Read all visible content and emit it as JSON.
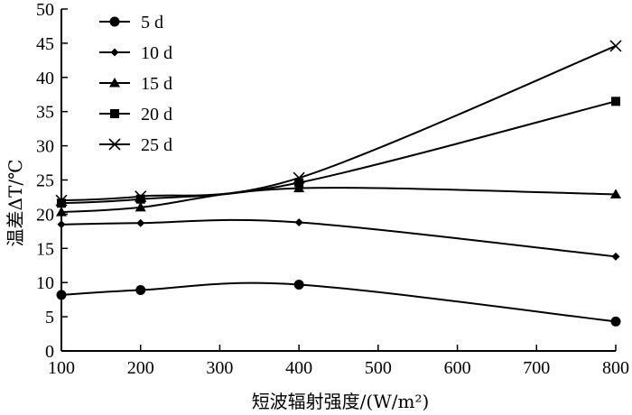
{
  "chart_data": {
    "type": "line",
    "xlabel": "短波辐射强度/(W/m²)",
    "ylabel": "温差ΔT/℃",
    "x": [
      100,
      200,
      400,
      800
    ],
    "xlim": [
      100,
      800
    ],
    "ylim": [
      0,
      50
    ],
    "xticks": [
      "100",
      "200",
      "300",
      "400",
      "500",
      "600",
      "700",
      "800"
    ],
    "yticks": [
      "0",
      "5",
      "10",
      "15",
      "20",
      "25",
      "30",
      "35",
      "40",
      "45",
      "50"
    ],
    "grid": false,
    "legend_position": "top-left",
    "series": [
      {
        "name": "5 d",
        "marker": "circle",
        "values": [
          8.2,
          8.9,
          9.7,
          4.3
        ]
      },
      {
        "name": "10 d",
        "marker": "diamond",
        "values": [
          18.5,
          18.7,
          18.8,
          13.8
        ]
      },
      {
        "name": "15 d",
        "marker": "triangle",
        "values": [
          20.3,
          21.0,
          23.8,
          22.9
        ]
      },
      {
        "name": "20 d",
        "marker": "square",
        "values": [
          21.6,
          22.2,
          24.6,
          36.5
        ]
      },
      {
        "name": "25 d",
        "marker": "x",
        "values": [
          22.0,
          22.6,
          25.3,
          44.6
        ]
      }
    ]
  }
}
